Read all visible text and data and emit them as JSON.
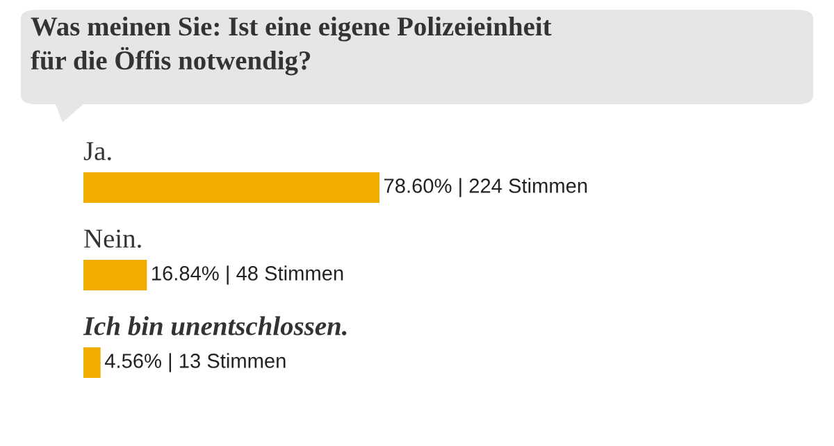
{
  "chart_data": {
    "type": "bar",
    "orientation": "horizontal",
    "title": "Was meinen Sie: Ist eine eigene Polizeieinheit\nfür die Öffis notwendig?",
    "categories": [
      "Ja.",
      "Nein.",
      "Ich bin unentschlossen."
    ],
    "values": [
      78.6,
      16.84,
      4.56
    ],
    "value_labels": [
      "78.60% | 224 Stimmen",
      "16.84% | 48 Stimmen",
      "4.56% | 13 Stimmen"
    ],
    "color": "#f0ad00"
  }
}
